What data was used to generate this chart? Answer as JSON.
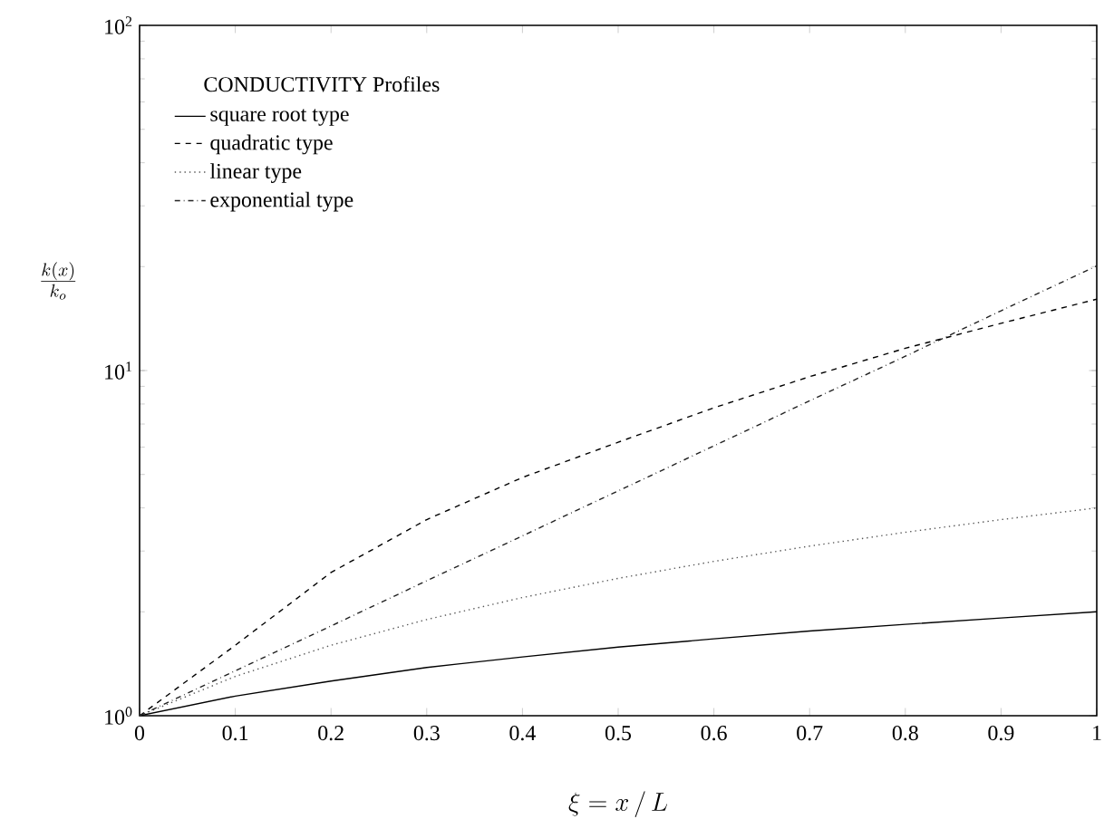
{
  "chart_data": {
    "type": "line",
    "xlabel": "\\xi = x\\,/\\,L",
    "ylabel": "\\frac{k(x)}{k_o}",
    "legend_title": "CONDUCTIVITY Profiles",
    "x": [
      0,
      0.1,
      0.2,
      0.3,
      0.4,
      0.5,
      0.6,
      0.7,
      0.8,
      0.9,
      1
    ],
    "series": [
      {
        "name": "square root type",
        "color": "#000000",
        "line_style": "solid",
        "values": [
          1,
          1.14,
          1.26,
          1.38,
          1.48,
          1.58,
          1.67,
          1.76,
          1.84,
          1.92,
          2.0
        ]
      },
      {
        "name": "quadratic type",
        "color": "#000000",
        "line_style": "dashed",
        "values": [
          1,
          1.6,
          2.6,
          3.7,
          4.9,
          6.2,
          7.8,
          9.6,
          11.6,
          13.7,
          16.1
        ]
      },
      {
        "name": "linear type",
        "color": "#555555",
        "line_style": "dotted",
        "values": [
          1,
          1.3,
          1.6,
          1.9,
          2.2,
          2.5,
          2.8,
          3.1,
          3.4,
          3.7,
          4.0
        ]
      },
      {
        "name": "exponential type",
        "color": "#222222",
        "line_style": "dashdot",
        "values": [
          1,
          1.35,
          1.82,
          2.46,
          3.32,
          4.48,
          6.05,
          8.17,
          11.0,
          14.9,
          20.1
        ]
      }
    ],
    "log": "y",
    "xlim": [
      0,
      1
    ],
    "ylim": [
      1,
      100
    ],
    "xticks": [
      {
        "value": 0,
        "label": "0"
      },
      0.1,
      0.2,
      0.3,
      0.4,
      0.5,
      0.6,
      0.7,
      0.8,
      0.9,
      {
        "value": 1,
        "label": "1"
      }
    ],
    "yticks": [
      {
        "value": 1,
        "label": "10$^{0}$"
      },
      {
        "value": 10,
        "label": "10$^{1}$"
      },
      {
        "value": 100,
        "label": "10$^{2}$"
      }
    ],
    "legend": "top left",
    "grid": false,
    "marker": "none"
  }
}
